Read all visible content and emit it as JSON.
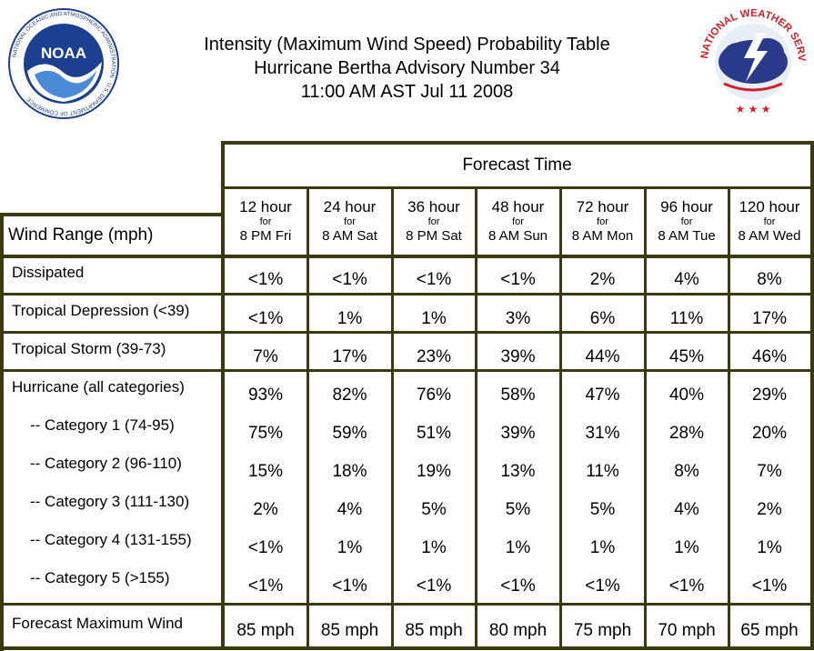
{
  "header": {
    "title_line1": "Intensity (Maximum Wind Speed) Probability Table",
    "title_line2": "Hurricane Bertha Advisory Number 34",
    "title_line3": "11:00 AM AST Jul 11 2008"
  },
  "logos": {
    "noaa_text": "NOAA",
    "noaa_ring": "NATIONAL OCEANIC AND ATMOSPHERIC ADMINISTRATION · U.S. DEPARTMENT OF COMMERCE",
    "nws_ring": "NATIONAL WEATHER SERVICE"
  },
  "table": {
    "forecast_time_label": "Forecast Time",
    "wind_range_label": "Wind Range (mph)",
    "columns": [
      {
        "hours": "12 hour",
        "for": "for",
        "when": "8 PM Fri"
      },
      {
        "hours": "24 hour",
        "for": "for",
        "when": "8 AM Sat"
      },
      {
        "hours": "36 hour",
        "for": "for",
        "when": "8 PM Sat"
      },
      {
        "hours": "48 hour",
        "for": "for",
        "when": "8 AM Sun"
      },
      {
        "hours": "72 hour",
        "for": "for",
        "when": "8 AM Mon"
      },
      {
        "hours": "96 hour",
        "for": "for",
        "when": "8 AM Tue"
      },
      {
        "hours": "120 hour",
        "for": "for",
        "when": "8 AM Wed"
      }
    ],
    "rows": [
      {
        "label": "Dissipated",
        "values": [
          "<1%",
          "<1%",
          "<1%",
          "<1%",
          "2%",
          "4%",
          "8%"
        ]
      },
      {
        "label": "Tropical Depression (<39)",
        "values": [
          "<1%",
          "1%",
          "1%",
          "3%",
          "6%",
          "11%",
          "17%"
        ]
      },
      {
        "label": "Tropical Storm (39-73)",
        "values": [
          "7%",
          "17%",
          "23%",
          "39%",
          "44%",
          "45%",
          "46%"
        ]
      },
      {
        "label": "Hurricane (all categories)",
        "values": [
          "93%",
          "82%",
          "76%",
          "58%",
          "47%",
          "40%",
          "29%"
        ]
      },
      {
        "label": "-- Category 1 (74-95)",
        "values": [
          "75%",
          "59%",
          "51%",
          "39%",
          "31%",
          "28%",
          "20%"
        ]
      },
      {
        "label": "-- Category 2 (96-110)",
        "values": [
          "15%",
          "18%",
          "19%",
          "13%",
          "11%",
          "8%",
          "7%"
        ]
      },
      {
        "label": "-- Category 3 (111-130)",
        "values": [
          "2%",
          "4%",
          "5%",
          "5%",
          "5%",
          "4%",
          "2%"
        ]
      },
      {
        "label": "-- Category 4 (131-155)",
        "values": [
          "<1%",
          "1%",
          "1%",
          "1%",
          "1%",
          "1%",
          "1%"
        ]
      },
      {
        "label": "-- Category 5 (>155)",
        "values": [
          "<1%",
          "<1%",
          "<1%",
          "<1%",
          "<1%",
          "<1%",
          "<1%"
        ]
      },
      {
        "label": "Forecast Maximum Wind",
        "values": [
          "85 mph",
          "85 mph",
          "85 mph",
          "80 mph",
          "75 mph",
          "70 mph",
          "65 mph"
        ]
      }
    ]
  },
  "colors": {
    "rule": "#3a3a10",
    "noaa_blue": "#1d3f8f",
    "nws_red": "#d0202a"
  }
}
